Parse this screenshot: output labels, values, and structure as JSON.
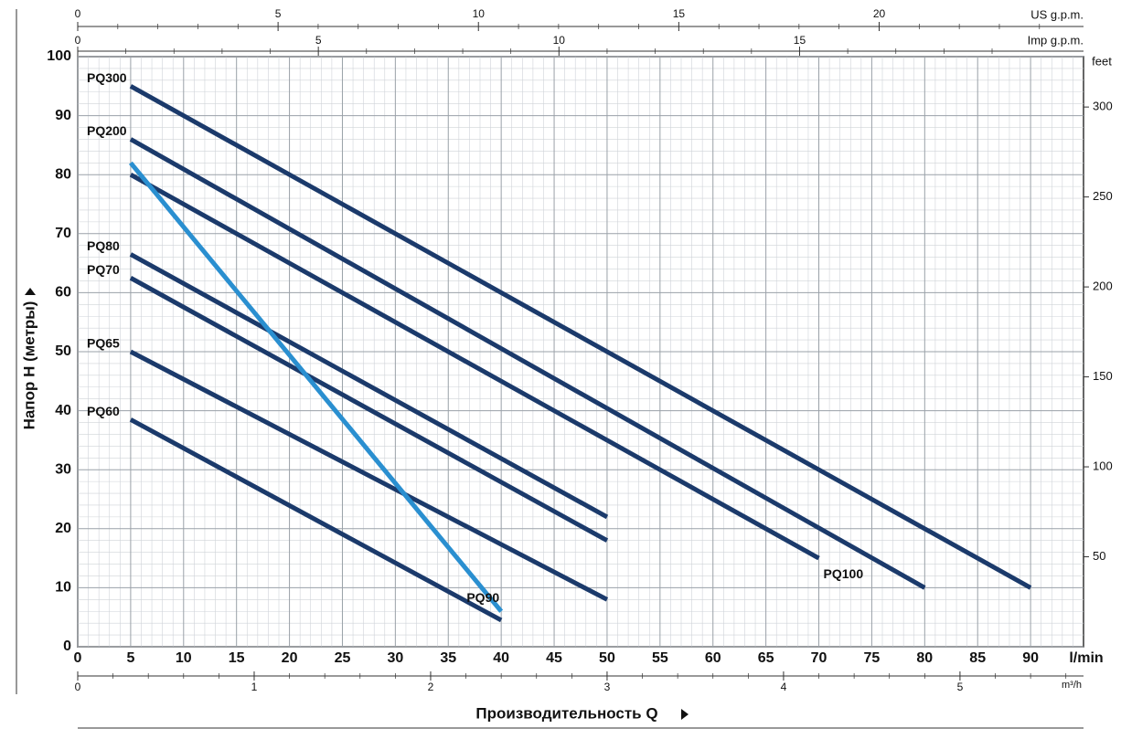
{
  "chart_data": {
    "type": "line",
    "y_label": "Напор H (метры)",
    "x_label": "Производительность Q",
    "x_unit": "l/min",
    "xlim": [
      0,
      95
    ],
    "xticks": [
      0,
      5,
      10,
      15,
      20,
      25,
      30,
      35,
      40,
      45,
      50,
      55,
      60,
      65,
      70,
      75,
      80,
      85,
      90
    ],
    "ylim": [
      0,
      100
    ],
    "yticks": [
      0,
      10,
      20,
      30,
      40,
      50,
      60,
      70,
      80,
      90,
      100
    ],
    "grid": true,
    "series": [
      {
        "name": "PQ300",
        "color": "#1b3a6b",
        "x": [
          5,
          90
        ],
        "values": [
          95,
          10
        ]
      },
      {
        "name": "PQ200",
        "color": "#1b3a6b",
        "x": [
          5,
          80
        ],
        "values": [
          86,
          10
        ]
      },
      {
        "name": "PQ100",
        "color": "#1b3a6b",
        "x": [
          5,
          70
        ],
        "values": [
          80,
          15
        ]
      },
      {
        "name": "PQ80",
        "color": "#1b3a6b",
        "x": [
          5,
          50
        ],
        "values": [
          66.5,
          22
        ]
      },
      {
        "name": "PQ70",
        "color": "#1b3a6b",
        "x": [
          5,
          50
        ],
        "values": [
          62.5,
          18
        ]
      },
      {
        "name": "PQ65",
        "color": "#1b3a6b",
        "x": [
          5,
          50
        ],
        "values": [
          50,
          8
        ]
      },
      {
        "name": "PQ60",
        "color": "#1b3a6b",
        "x": [
          5,
          40
        ],
        "values": [
          38.5,
          4.5
        ]
      },
      {
        "name": "PQ90",
        "color": "#2a8fd0",
        "x": [
          5,
          40
        ],
        "values": [
          82,
          6
        ]
      }
    ],
    "top_axis": {
      "label": "US g.p.m.",
      "lim": [
        0,
        25.1
      ],
      "ticks": [
        0,
        5,
        10,
        15,
        20
      ]
    },
    "top_axis2": {
      "label": "Imp g.p.m.",
      "lim": [
        0,
        20.9
      ],
      "ticks": [
        0,
        5,
        10,
        15
      ]
    },
    "bottom_axis": {
      "label": "m³/h",
      "lim": [
        0,
        5.7
      ],
      "ticks": [
        0,
        1,
        2,
        3,
        4,
        5
      ]
    },
    "right_axis": {
      "label": "feet",
      "lim": [
        0,
        328
      ],
      "ticks": [
        50,
        100,
        150,
        200,
        250,
        300
      ]
    }
  }
}
